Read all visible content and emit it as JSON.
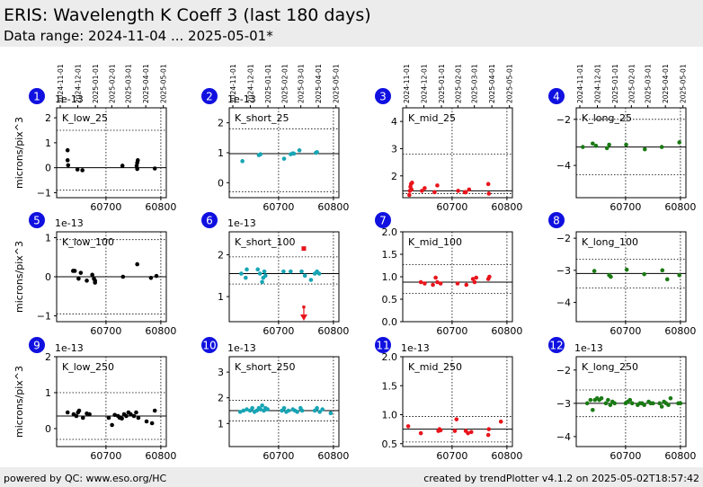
{
  "header": {
    "title": "ERIS: Wavelength K Coeff 3 (last 180 days)",
    "subtitle": "Data range: 2024-11-04 ... 2025-05-01*"
  },
  "footer": {
    "left": "powered by QC: www.eso.org/HC",
    "right": "created by trendPlotter v4.1.2 on 2025-05-02T18:57:42"
  },
  "date_ticks": [
    "2024-11-01",
    "2024-12-01",
    "2025-01-01",
    "2025-02-01",
    "2025-03-01",
    "2025-04-01",
    "2025-05-01"
  ],
  "colors": {
    "low": "#000000",
    "short": "#17a5b5",
    "mid": "#e8141c",
    "long": "#1a7a14",
    "badge": "#1010e0"
  },
  "chart_data": [
    {
      "type": "scatter",
      "panel": "1",
      "label": "K_low_25",
      "ylabel": "microns/pix^3",
      "multiplier": "1e-13",
      "ylim": [
        -1.2,
        2.4
      ],
      "yticks": [
        -1,
        0,
        1,
        2
      ],
      "xlim": [
        60610,
        60810
      ],
      "xticks": [
        60700,
        60800
      ],
      "ref": 0,
      "dotted": [
        -0.9,
        1.5
      ],
      "color": "low",
      "x": [
        60630,
        60630,
        60631,
        60648,
        60657,
        60730,
        60756,
        60757,
        60757,
        60758,
        60789
      ],
      "y": [
        0.7,
        0.3,
        0.1,
        -0.07,
        -0.1,
        0.08,
        0.08,
        0.2,
        -0.05,
        0.3,
        -0.03
      ]
    },
    {
      "type": "scatter",
      "panel": "2",
      "label": "K_short_25",
      "ylabel": "",
      "multiplier": "1e-13",
      "ylim": [
        -0.5,
        2.5
      ],
      "yticks": [
        0,
        1,
        2
      ],
      "xlim": [
        60610,
        60810
      ],
      "xticks": [
        60700,
        60800
      ],
      "ref": 0.97,
      "dotted": [
        -0.3,
        1.8
      ],
      "color": "short",
      "x": [
        60634,
        60664,
        60667,
        60710,
        60722,
        60726,
        60728,
        60738,
        60768,
        60770
      ],
      "y": [
        0.72,
        0.92,
        0.95,
        0.8,
        0.95,
        0.98,
        0.97,
        1.08,
        1.0,
        1.02
      ]
    },
    {
      "type": "scatter",
      "panel": "3",
      "label": "K_mid_25",
      "ylabel": "",
      "multiplier": "",
      "ylim": [
        1.2,
        4.5
      ],
      "yticks": [
        2,
        3,
        4
      ],
      "xlim": [
        60610,
        60810
      ],
      "xticks": [
        60700,
        60800
      ],
      "ref": 1.45,
      "dotted": [
        1.35,
        2.8
      ],
      "color": "mid",
      "x": [
        60622,
        60623,
        60624,
        60625,
        60626,
        60627,
        60645,
        60650,
        60668,
        60673,
        60711,
        60723,
        60725,
        60731,
        60766,
        60767
      ],
      "y": [
        1.3,
        1.45,
        1.6,
        1.7,
        1.5,
        1.75,
        1.45,
        1.55,
        1.4,
        1.65,
        1.45,
        1.4,
        1.4,
        1.5,
        1.7,
        1.35
      ]
    },
    {
      "type": "scatter",
      "panel": "4",
      "label": "K_long_25",
      "ylabel": "",
      "multiplier": "",
      "ylim": [
        -5.4,
        -1.5
      ],
      "yticks": [
        -4,
        -2
      ],
      "xlim": [
        60610,
        60810
      ],
      "xticks": [
        60700,
        60800
      ],
      "ref": -3.2,
      "dotted": [
        -4.4,
        -2.0
      ],
      "color": "long",
      "x": [
        60622,
        60640,
        60646,
        60666,
        60670,
        60701,
        60735,
        60766,
        60798
      ],
      "y": [
        -3.2,
        -3.05,
        -3.15,
        -3.25,
        -3.1,
        -3.1,
        -3.3,
        -3.2,
        -3.0
      ]
    },
    {
      "type": "scatter",
      "panel": "5",
      "label": "K_low_100",
      "ylabel": "microns/pix^3",
      "multiplier": "1e-13",
      "ylim": [
        -1.15,
        1.15
      ],
      "yticks": [
        -1,
        0,
        1
      ],
      "xlim": [
        60610,
        60810
      ],
      "xticks": [
        60700,
        60800
      ],
      "ref": 0,
      "dotted": [
        -0.95,
        0.95
      ],
      "color": "low",
      "x": [
        60640,
        60643,
        60650,
        60654,
        60665,
        60675,
        60678,
        60680,
        60680,
        60731,
        60757,
        60782,
        60792
      ],
      "y": [
        0.15,
        0.15,
        -0.05,
        0.1,
        -0.1,
        0.05,
        -0.05,
        -0.1,
        -0.15,
        0.0,
        0.32,
        -0.03,
        0.02
      ]
    },
    {
      "type": "scatter",
      "panel": "6",
      "label": "K_short_100",
      "ylabel": "",
      "multiplier": "1e-13",
      "ylim": [
        0.4,
        2.55
      ],
      "yticks": [
        1,
        2
      ],
      "xlim": [
        60610,
        60810
      ],
      "xticks": [
        60700,
        60800
      ],
      "ref": 1.55,
      "dotted": [
        1.3,
        1.95
      ],
      "color": "short",
      "x": [
        60632,
        60640,
        60642,
        60662,
        60666,
        60670,
        60672,
        60674,
        60676,
        60709,
        60722,
        60742,
        60748,
        60759,
        60766,
        60770,
        60774
      ],
      "y": [
        1.55,
        1.45,
        1.65,
        1.65,
        1.55,
        1.35,
        1.45,
        1.6,
        1.5,
        1.6,
        1.6,
        1.6,
        1.5,
        1.4,
        1.55,
        1.6,
        1.55
      ],
      "outliers": [
        {
          "x": 60746,
          "y": 2.15
        }
      ],
      "arrow": {
        "x": 60746,
        "y_from": 0.75
      }
    },
    {
      "type": "scatter",
      "panel": "7",
      "label": "K_mid_100",
      "ylabel": "",
      "multiplier": "",
      "ylim": [
        0.0,
        2.0
      ],
      "yticks": [
        0.0,
        0.5,
        1.0,
        1.5,
        2.0
      ],
      "xlim": [
        60610,
        60810
      ],
      "xticks": [
        60700,
        60800
      ],
      "ref": 0.88,
      "dotted": [
        0.63,
        1.27
      ],
      "color": "mid",
      "x": [
        60643,
        60650,
        60665,
        60670,
        60673,
        60679,
        60710,
        60726,
        60738,
        60741,
        60744,
        60766,
        60768
      ],
      "y": [
        0.88,
        0.85,
        0.82,
        0.98,
        0.88,
        0.85,
        0.85,
        0.82,
        0.95,
        0.88,
        0.98,
        0.95,
        1.0
      ]
    },
    {
      "type": "scatter",
      "panel": "8",
      "label": "K_long_100",
      "ylabel": "",
      "multiplier": "",
      "ylim": [
        -4.6,
        -1.8
      ],
      "yticks": [
        -4,
        -3,
        -2
      ],
      "xlim": [
        60610,
        60810
      ],
      "xticks": [
        60700,
        60800
      ],
      "ref": -3.1,
      "dotted": [
        -3.55,
        -2.65
      ],
      "color": "long",
      "x": [
        60643,
        60670,
        60673,
        60702,
        60734,
        60767,
        60776,
        60798
      ],
      "y": [
        -3.02,
        -3.15,
        -3.2,
        -2.98,
        -3.12,
        -3.0,
        -3.28,
        -3.15
      ]
    },
    {
      "type": "scatter",
      "panel": "9",
      "label": "K_low_250",
      "ylabel": "microns/pix^3",
      "multiplier": "1e-13",
      "ylim": [
        -0.5,
        2.0
      ],
      "yticks": [
        0,
        1,
        2
      ],
      "xlim": [
        60610,
        60810
      ],
      "xticks": [
        60700,
        60800
      ],
      "ref": 0.35,
      "dotted": [
        -0.3,
        1.0
      ],
      "color": "low",
      "x": [
        60630,
        60641,
        60646,
        60649,
        60651,
        60658,
        60665,
        60670,
        60705,
        60711,
        60716,
        60722,
        60725,
        60729,
        60733,
        60737,
        60741,
        60745,
        60751,
        60755,
        60759,
        60774,
        60784,
        60789
      ],
      "y": [
        0.45,
        0.4,
        0.35,
        0.45,
        0.5,
        0.3,
        0.42,
        0.4,
        0.3,
        0.1,
        0.38,
        0.35,
        0.3,
        0.28,
        0.4,
        0.35,
        0.45,
        0.4,
        0.35,
        0.45,
        0.3,
        0.2,
        0.15,
        0.5
      ]
    },
    {
      "type": "scatter",
      "panel": "10",
      "label": "K_short_250",
      "ylabel": "",
      "multiplier": "1e-13",
      "ylim": [
        0.1,
        3.6
      ],
      "yticks": [
        1,
        2,
        3
      ],
      "xlim": [
        60610,
        60810
      ],
      "xticks": [
        60700,
        60800
      ],
      "ref": 1.5,
      "dotted": [
        1.1,
        1.9
      ],
      "color": "short",
      "x": [
        60630,
        60636,
        60642,
        60648,
        60652,
        60656,
        60660,
        60664,
        60667,
        60670,
        60673,
        60676,
        60680,
        60706,
        60710,
        60714,
        60718,
        60726,
        60730,
        60734,
        60740,
        60743,
        60766,
        60770,
        60775,
        60780,
        60795
      ],
      "y": [
        1.45,
        1.5,
        1.55,
        1.5,
        1.6,
        1.45,
        1.5,
        1.6,
        1.55,
        1.7,
        1.5,
        1.6,
        1.55,
        1.5,
        1.6,
        1.45,
        1.5,
        1.55,
        1.5,
        1.45,
        1.6,
        1.5,
        1.5,
        1.6,
        1.45,
        1.55,
        1.4
      ]
    },
    {
      "type": "scatter",
      "panel": "11",
      "label": "K_mid_250",
      "ylabel": "",
      "multiplier": "1e-13",
      "ylim": [
        0.45,
        2.0
      ],
      "yticks": [
        0.5,
        1.0,
        1.5,
        2.0
      ],
      "xlim": [
        60610,
        60810
      ],
      "xticks": [
        60700,
        60800
      ],
      "ref": 0.75,
      "dotted": [
        0.53,
        0.97
      ],
      "color": "mid",
      "x": [
        60620,
        60643,
        60675,
        60677,
        60679,
        60705,
        60708,
        60725,
        60729,
        60735,
        60766,
        60767,
        60789
      ],
      "y": [
        0.8,
        0.68,
        0.72,
        0.75,
        0.73,
        0.72,
        0.92,
        0.72,
        0.68,
        0.7,
        0.65,
        0.75,
        0.88
      ]
    },
    {
      "type": "scatter",
      "panel": "12",
      "label": "K_long_250",
      "ylabel": "",
      "multiplier": "1e-13",
      "ylim": [
        -4.3,
        -1.6
      ],
      "yticks": [
        -4,
        -3,
        -2
      ],
      "xlim": [
        60610,
        60810
      ],
      "xticks": [
        60700,
        60800
      ],
      "ref": -3.0,
      "dotted": [
        -3.4,
        -2.6
      ],
      "color": "long",
      "x": [
        60630,
        60636,
        60640,
        60644,
        60648,
        60652,
        60656,
        60664,
        60668,
        60672,
        60676,
        60680,
        60700,
        60704,
        60708,
        60712,
        60722,
        60726,
        60730,
        60734,
        60742,
        60746,
        60750,
        60762,
        60766,
        60770,
        60774,
        60778,
        60782,
        60796,
        60800
      ],
      "y": [
        -3.0,
        -2.9,
        -3.2,
        -2.9,
        -2.85,
        -2.9,
        -2.85,
        -3.0,
        -2.9,
        -3.05,
        -2.95,
        -3.0,
        -3.0,
        -2.95,
        -2.9,
        -3.0,
        -3.05,
        -3.0,
        -3.0,
        -3.05,
        -2.95,
        -3.0,
        -3.0,
        -3.0,
        -3.1,
        -2.95,
        -3.0,
        -3.05,
        -2.85,
        -3.0,
        -3.0
      ]
    }
  ]
}
